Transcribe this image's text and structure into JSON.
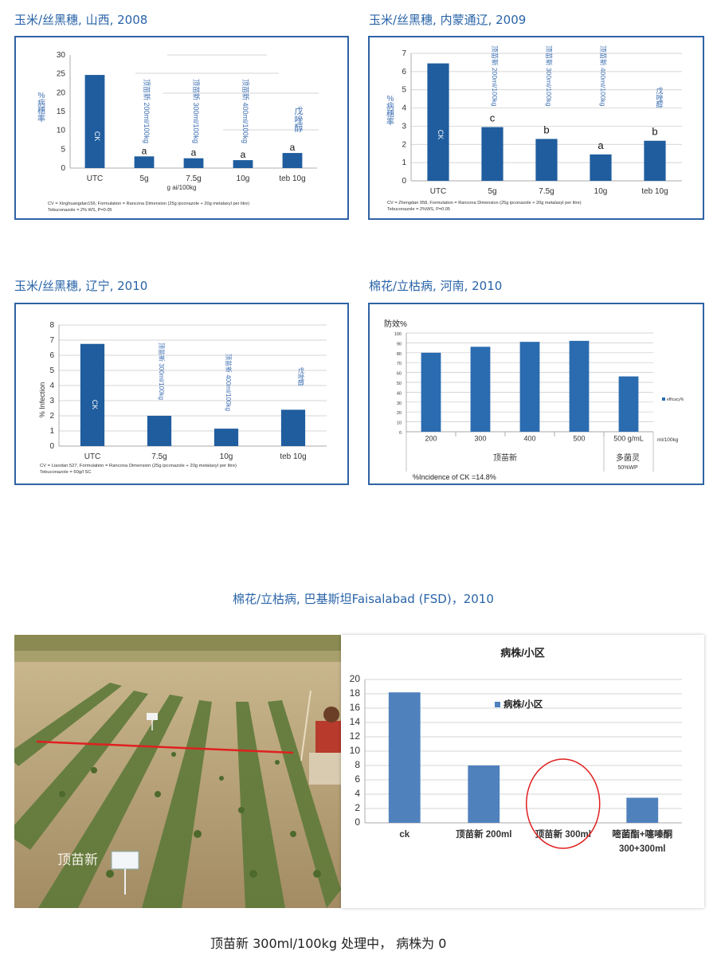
{
  "sections": {
    "s1": "玉米/丝黑穗, 山西, 2008",
    "s2": "玉米/丝黑穗, 内蒙通辽, 2009",
    "s3": "玉米/丝黑穗, 辽宁, 2010",
    "s4": "棉花/立枯病, 河南, 2010",
    "s5": "棉花/立枯病, 巴基斯坦Faisalabad (FSD)，2010"
  },
  "bottom_caption": "顶苗新 300ml/100kg 处理中， 病株为 0",
  "photo": {
    "label": "顶苗新"
  },
  "chart_data": [
    {
      "type": "bar",
      "ylabel": "%病穗率",
      "ylim": [
        0,
        30
      ],
      "yticks": [
        0,
        5,
        10,
        15,
        20,
        25,
        30
      ],
      "categories": [
        "UTC",
        "5g",
        "7.5g",
        "10g",
        "teb 10g"
      ],
      "values": [
        24.7,
        3.1,
        2.6,
        2.1,
        4.0
      ],
      "xlabel": "g ai/100kg",
      "bar_labels": [
        "CK",
        "a",
        "a",
        "a",
        "a"
      ],
      "bar_annotations": [
        "",
        "顶苗新 200ml/100kg",
        "顶苗新 300ml/100kg",
        "顶苗新 400ml/100kg",
        "戊唑醇"
      ],
      "footnotes": [
        "CV = Xinghuangdan156, Formulation = Rancona Dimension (25g ipconazole + 20g metalaxyl per litre)",
        "Tebuconazole = 2% WS,  P=0.05"
      ]
    },
    {
      "type": "bar",
      "ylabel": "%病穗率",
      "ylim": [
        0,
        7
      ],
      "yticks": [
        0,
        1,
        2,
        3,
        4,
        5,
        6,
        7
      ],
      "categories": [
        "UTC",
        "5g",
        "7.5g",
        "10g",
        "teb 10g"
      ],
      "values": [
        6.45,
        2.95,
        2.3,
        1.45,
        2.2
      ],
      "bar_labels": [
        "CK",
        "c",
        "b",
        "a",
        "b"
      ],
      "bar_annotations": [
        "",
        "顶苗新 200ml/100kg",
        "顶苗新 300ml/100kg",
        "顶苗新 400ml/100kg",
        "戊唑醇"
      ],
      "footnotes": [
        "CV = Zhengdan 958,  Formulation = Rancona Dimension (25g ipconazole + 20g metalaxyl per litre)",
        "Tebuconazole = 2%WS,  P=0.05"
      ]
    },
    {
      "type": "bar",
      "ylabel": "% Infection",
      "ylim": [
        0,
        8
      ],
      "yticks": [
        0,
        1,
        2,
        3,
        4,
        5,
        6,
        7,
        8
      ],
      "categories": [
        "UTC",
        "7.5g",
        "10g",
        "teb 10g"
      ],
      "values": [
        6.75,
        2.0,
        1.15,
        2.4
      ],
      "bar_labels": [
        "CK",
        "",
        "",
        ""
      ],
      "bar_annotations": [
        "",
        "顶苗新 300ml/100kg",
        "顶苗新 400ml/100kg",
        "戊唑醇"
      ],
      "footnotes": [
        "CV = Liaodan 527,  Formulation = Rancona Dimension (25g ipconazole + 20g metalaxyl per litre)",
        "Tebuconazole = 60g/l SC"
      ]
    },
    {
      "type": "bar",
      "title": "防效%",
      "ylim": [
        0,
        100
      ],
      "yticks": [
        0,
        10,
        20,
        30,
        40,
        50,
        60,
        70,
        80,
        90,
        100
      ],
      "categories": [
        "200",
        "300",
        "400",
        "500",
        "500 g/mL"
      ],
      "values": [
        80,
        86,
        91,
        92,
        56
      ],
      "unit_label": "ml/100kg",
      "group_labels": [
        "顶苗新",
        "多菌灵 50%WP"
      ],
      "legend": "efficacy%",
      "note": "%Incidence of CK =14.8%"
    },
    {
      "type": "bar",
      "title": "病株/小区",
      "ylim": [
        0,
        20
      ],
      "yticks": [
        0,
        2,
        4,
        6,
        8,
        10,
        12,
        14,
        16,
        18,
        20
      ],
      "categories": [
        "ck",
        "顶苗新 200ml",
        "顶苗新 300ml",
        "嘧菌酯+噻嗪酮 300+300ml"
      ],
      "values": [
        18.2,
        8.0,
        0,
        3.5
      ],
      "series": [
        {
          "name": "病株/小区",
          "values": [
            18.2,
            8.0,
            0,
            3.5
          ]
        }
      ],
      "legend": "病株/小区"
    }
  ],
  "colors": {
    "title_blue": "#2a64a8",
    "frame_blue": "#2f63a4",
    "bar_dark": "#1f5d9e",
    "bar_mid": "#2b6cb0",
    "bar_light": "#4f81bd",
    "annotation_blue": "#3d6fb3",
    "red_marks": "#e02020"
  }
}
